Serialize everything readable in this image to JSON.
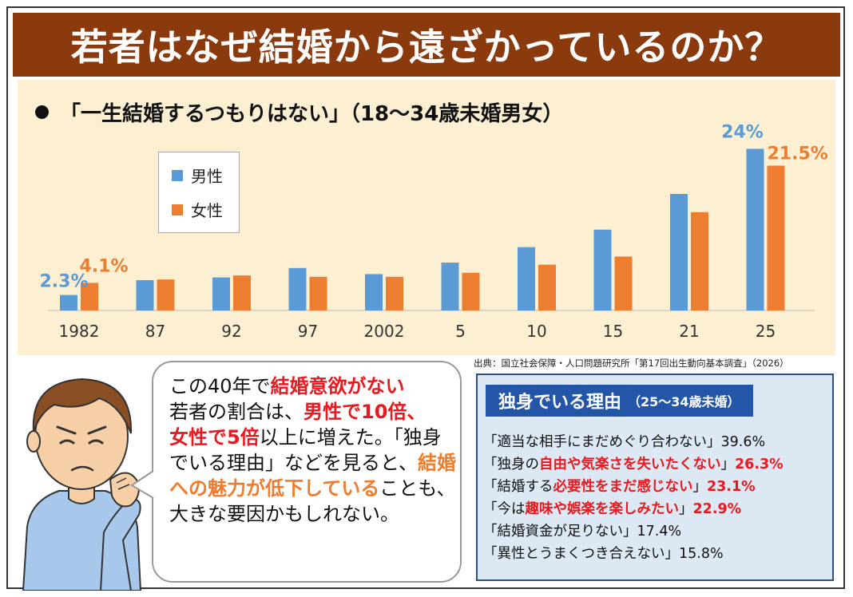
{
  "title": "若者はなぜ結婚から遠ざかっているのか？",
  "chart_data": {
    "type": "bar",
    "title": "「一生結婚するつもりはない」（18〜34歳未婚男女）",
    "categories": [
      "1982",
      "87",
      "92",
      "97",
      "2002",
      "5",
      "10",
      "15",
      "21",
      "25"
    ],
    "series": [
      {
        "name": "男性",
        "color": "#5b9bd5",
        "values": [
          2.3,
          4.5,
          4.9,
          6.3,
          5.4,
          7.1,
          9.4,
          12.0,
          17.3,
          24.0
        ]
      },
      {
        "name": "女性",
        "color": "#ed7d31",
        "values": [
          4.1,
          4.6,
          5.2,
          5.0,
          5.0,
          5.6,
          6.8,
          8.0,
          14.6,
          21.5
        ]
      }
    ],
    "labels": {
      "first_male": "2.3%",
      "first_female": "4.1%",
      "last_male": "24%",
      "last_female": "21.5%"
    },
    "ylim": [
      0,
      25
    ],
    "grid": false,
    "legend": "top-left"
  },
  "source": "出典：国立社会保障・人口問題研究所「第17回出生動向基本調査」（2026）",
  "bubble": {
    "p1": "この40年で",
    "p2": "結婚意欲がない",
    "p3": "若者の割合は、",
    "p4": "男性で10倍、",
    "p5": "女性で5倍",
    "p6": "以上に増えた。「独身でいる理由」などを見ると、",
    "p7": "結婚への魅力が低下している",
    "p8": "ことも、大きな要因かもしれない。"
  },
  "reasons": {
    "heading": "独身でいる理由",
    "heading_sub": "（25〜34歳未婚）",
    "items": [
      {
        "pre": "「適当な相手にまだめぐり合わない」",
        "hl": "",
        "post": "",
        "value": "39.6%",
        "value_red": false
      },
      {
        "pre": "「独身の",
        "hl": "自由や気楽さを失いたくない",
        "post": "」",
        "value": "26.3%",
        "value_red": true
      },
      {
        "pre": "「結婚する",
        "hl": "必要性をまだ感じない",
        "post": "」",
        "value": "23.1%",
        "value_red": true
      },
      {
        "pre": "「今は",
        "hl": "趣味や娯楽を楽しみたい",
        "post": "」",
        "value": "22.9%",
        "value_red": true
      },
      {
        "pre": "「結婚資金が足りない」",
        "hl": "",
        "post": "",
        "value": "17.4%",
        "value_red": false
      },
      {
        "pre": "「異性とうまくつき合えない」",
        "hl": "",
        "post": "",
        "value": "15.8%",
        "value_red": false
      }
    ]
  }
}
